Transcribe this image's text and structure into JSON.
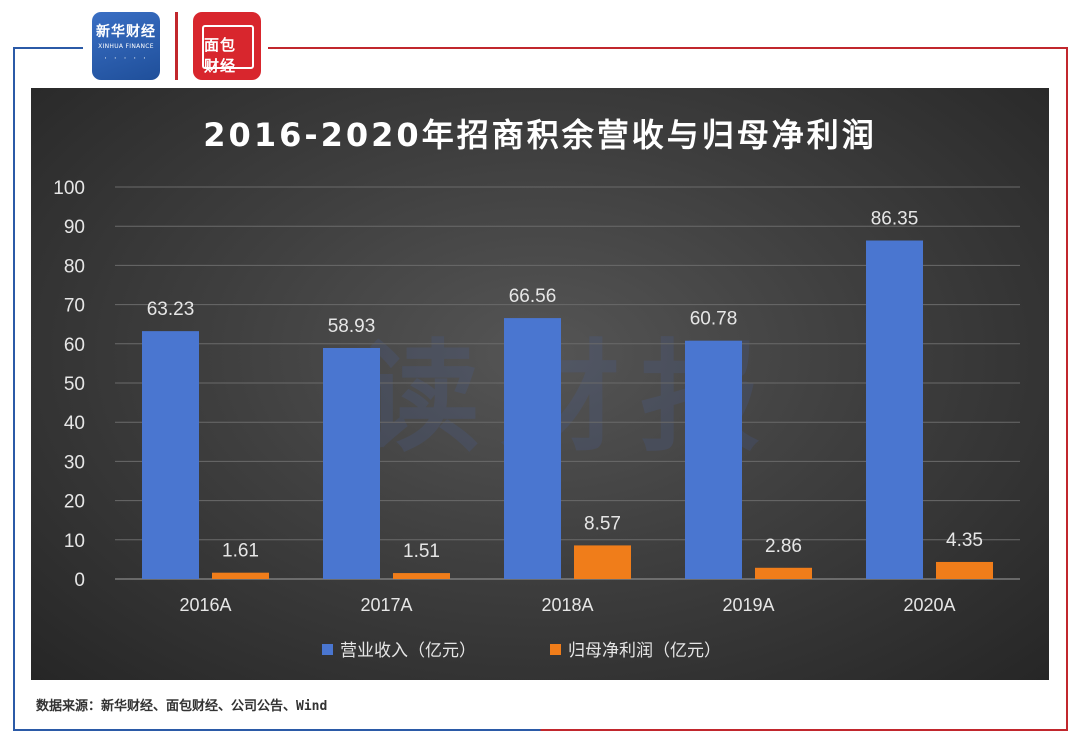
{
  "logos": {
    "xinhua_cn": "新华财经",
    "xinhua_en": "XINHUA FINANCE",
    "mianbao": "面包财经"
  },
  "chart_data": {
    "type": "bar",
    "title": "2016-2020年招商积余营收与归母净利润",
    "categories": [
      "2016A",
      "2017A",
      "2018A",
      "2019A",
      "2020A"
    ],
    "series": [
      {
        "name": "营业收入（亿元）",
        "values": [
          63.23,
          58.93,
          66.56,
          60.78,
          86.35
        ],
        "labels": [
          "63.23",
          "58.93",
          "66.56",
          "60.78",
          "86.35"
        ],
        "color": "#4a76d0"
      },
      {
        "name": "归母净利润（亿元）",
        "values": [
          1.61,
          1.51,
          8.57,
          2.86,
          4.35
        ],
        "labels": [
          "1.61",
          "1.51",
          "8.57",
          "2.86",
          "4.35"
        ],
        "color": "#f07d1a"
      }
    ],
    "ylim": [
      0,
      100
    ],
    "yticks": [
      "0",
      "10",
      "20",
      "30",
      "40",
      "50",
      "60",
      "70",
      "80",
      "90",
      "100"
    ],
    "grid": true,
    "legend": "bottom"
  },
  "watermark": "读财报",
  "source": "数据来源：新华财经、面包财经、公司公告、Wind"
}
